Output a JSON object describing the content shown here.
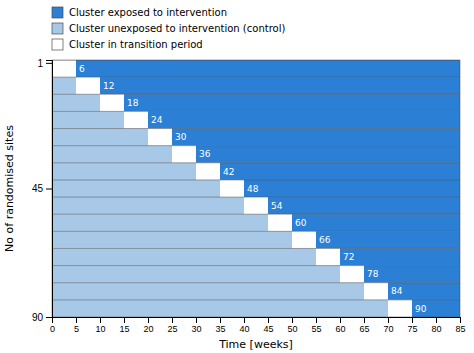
{
  "chart_data": {
    "type": "stepped_wedge",
    "x_label": "Time [weeks]",
    "y_label": "No of randomised sites",
    "values": [
      0,
      5,
      10,
      15,
      20,
      25,
      30,
      35,
      40,
      45,
      50,
      55,
      60,
      65,
      70
    ],
    "transition_width": 5,
    "sites": [
      6,
      12,
      18,
      24,
      30,
      36,
      42,
      48,
      54,
      60,
      66,
      72,
      78,
      84,
      90
    ],
    "data_labels": true,
    "series": [
      {
        "name": "Cluster exposed to intervention",
        "color": "#2B7FD4"
      },
      {
        "name": "Cluster unexposed to intervention (control)",
        "color": "#A8C8E8"
      },
      {
        "name": "Cluster in transition period",
        "color": "#FFFFFF"
      }
    ],
    "legend": "top",
    "xlim": [
      0,
      85
    ],
    "ylim": [
      0,
      90
    ],
    "xticks": [
      0,
      5,
      10,
      15,
      20,
      25,
      30,
      35,
      40,
      45,
      50,
      55,
      60,
      65,
      70,
      75,
      80,
      85
    ],
    "yticks": [
      1,
      45,
      90
    ]
  }
}
